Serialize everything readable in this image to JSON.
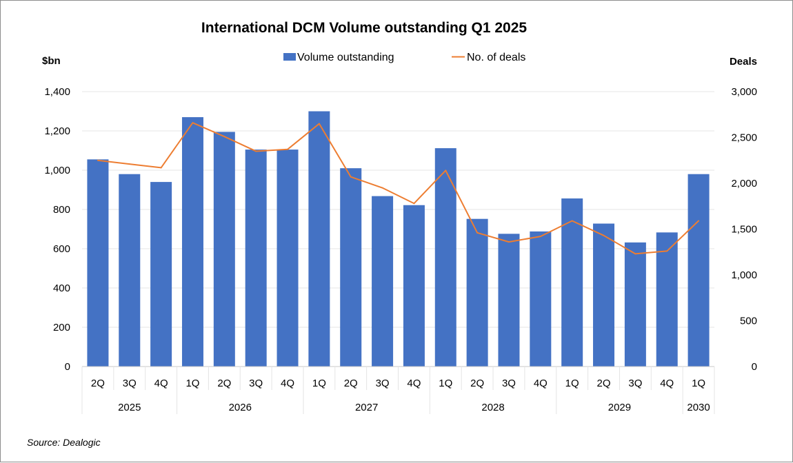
{
  "chart_data": {
    "type": "bar+line",
    "title": "International DCM Volume outstanding Q1 2025",
    "y_left_label": "$bn",
    "y_right_label": "Deals",
    "ylim_left": [
      0,
      1400
    ],
    "ylim_right": [
      0,
      3000
    ],
    "left_ticks": [
      "0",
      "200",
      "400",
      "600",
      "800",
      "1,000",
      "1,200",
      "1,400"
    ],
    "right_ticks": [
      "0",
      "500",
      "1,000",
      "1,500",
      "2,000",
      "2,500",
      "3,000"
    ],
    "left_tick_values": [
      0,
      200,
      400,
      600,
      800,
      1000,
      1200,
      1400
    ],
    "right_tick_values": [
      0,
      500,
      1000,
      1500,
      2000,
      2500,
      3000
    ],
    "quarters": [
      "2Q",
      "3Q",
      "4Q",
      "1Q",
      "2Q",
      "3Q",
      "4Q",
      "1Q",
      "2Q",
      "3Q",
      "4Q",
      "1Q",
      "2Q",
      "3Q",
      "4Q",
      "1Q",
      "2Q",
      "3Q",
      "4Q",
      "1Q"
    ],
    "year_groups": [
      {
        "year": "2025",
        "count": 3
      },
      {
        "year": "2026",
        "count": 4
      },
      {
        "year": "2027",
        "count": 4
      },
      {
        "year": "2028",
        "count": 4
      },
      {
        "year": "2029",
        "count": 4
      },
      {
        "year": "2030",
        "count": 1
      }
    ],
    "series": [
      {
        "name": "Volume outstanding",
        "type": "bar",
        "axis": "left",
        "color": "#4472C4",
        "values": [
          1055,
          980,
          940,
          1270,
          1195,
          1105,
          1105,
          1300,
          1010,
          868,
          822,
          1112,
          752,
          676,
          688,
          856,
          728,
          632,
          683,
          980
        ]
      },
      {
        "name": "No. of deals",
        "type": "line",
        "axis": "right",
        "color": "#ED7D31",
        "values": [
          2250,
          2210,
          2170,
          2660,
          2510,
          2350,
          2370,
          2650,
          2070,
          1950,
          1780,
          2140,
          1460,
          1360,
          1420,
          1590,
          1430,
          1230,
          1260,
          1590
        ]
      }
    ]
  },
  "legend": {
    "bar_label": "Volume outstanding",
    "line_label": "No. of deals"
  },
  "source": "Source: Dealogic",
  "colors": {
    "grid": "#e4e4e4",
    "axis": "#c8c8c8",
    "frame": "#8c8c8c"
  }
}
